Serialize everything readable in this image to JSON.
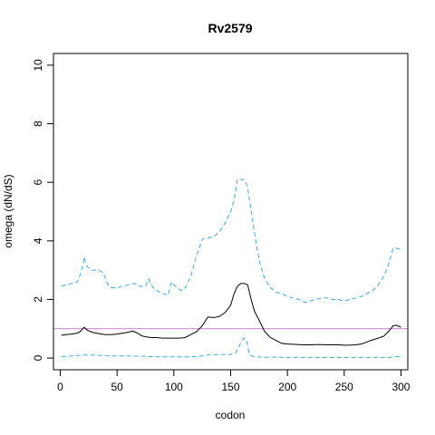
{
  "chart_data": {
    "type": "line",
    "title": "Rv2579",
    "xlabel": "codon",
    "ylabel": "omega (dN/dS)",
    "xlim": [
      -6,
      306
    ],
    "ylim": [
      -0.4,
      10.4
    ],
    "xticks": [
      0,
      50,
      100,
      150,
      200,
      250,
      300
    ],
    "yticks": [
      0,
      2,
      4,
      6,
      8,
      10
    ],
    "reference_line": {
      "y": 1,
      "color": "#c27fc8"
    },
    "series": [
      {
        "style": "solid",
        "color": "#000000",
        "x": [
          1,
          5,
          10,
          15,
          18,
          21,
          24,
          28,
          32,
          36,
          40,
          45,
          50,
          55,
          60,
          64,
          68,
          72,
          76,
          80,
          85,
          90,
          95,
          100,
          105,
          110,
          115,
          120,
          125,
          130,
          135,
          140,
          145,
          150,
          153,
          156,
          159,
          162,
          165,
          168,
          171,
          175,
          180,
          185,
          190,
          195,
          200,
          205,
          210,
          215,
          220,
          225,
          230,
          235,
          240,
          245,
          250,
          255,
          260,
          265,
          270,
          275,
          280,
          285,
          290,
          293,
          296,
          300
        ],
        "values": [
          0.78,
          0.8,
          0.82,
          0.85,
          0.92,
          1.05,
          0.95,
          0.88,
          0.85,
          0.82,
          0.8,
          0.8,
          0.82,
          0.85,
          0.88,
          0.92,
          0.85,
          0.75,
          0.72,
          0.7,
          0.7,
          0.68,
          0.68,
          0.68,
          0.68,
          0.7,
          0.8,
          0.9,
          1.1,
          1.4,
          1.38,
          1.42,
          1.55,
          1.8,
          2.2,
          2.45,
          2.55,
          2.55,
          2.5,
          2.0,
          1.6,
          1.3,
          0.9,
          0.7,
          0.6,
          0.5,
          0.48,
          0.47,
          0.46,
          0.45,
          0.45,
          0.46,
          0.46,
          0.45,
          0.45,
          0.45,
          0.44,
          0.44,
          0.45,
          0.48,
          0.55,
          0.62,
          0.68,
          0.75,
          0.95,
          1.1,
          1.12,
          1.05
        ]
      },
      {
        "style": "dashed",
        "color": "#3eaadf",
        "x": [
          1,
          5,
          10,
          15,
          18,
          20,
          21,
          22,
          24,
          26,
          28,
          30,
          34,
          38,
          40,
          42,
          45,
          50,
          55,
          60,
          65,
          70,
          75,
          78,
          80,
          82,
          85,
          90,
          95,
          98,
          100,
          103,
          106,
          110,
          115,
          120,
          125,
          128,
          130,
          135,
          140,
          145,
          150,
          153,
          156,
          159,
          161,
          163,
          165,
          167,
          170,
          173,
          176,
          180,
          185,
          190,
          195,
          200,
          205,
          210,
          215,
          220,
          225,
          230,
          235,
          240,
          245,
          250,
          255,
          260,
          265,
          270,
          275,
          280,
          285,
          290,
          293,
          296,
          300
        ],
        "values": [
          2.45,
          2.5,
          2.55,
          2.6,
          2.9,
          3.2,
          3.45,
          3.3,
          3.1,
          3.05,
          3.0,
          3.0,
          3.0,
          2.9,
          2.7,
          2.5,
          2.4,
          2.4,
          2.45,
          2.5,
          2.55,
          2.45,
          2.45,
          2.7,
          2.5,
          2.4,
          2.3,
          2.2,
          2.15,
          2.6,
          2.5,
          2.4,
          2.3,
          2.4,
          2.8,
          3.5,
          4.05,
          4.1,
          4.1,
          4.15,
          4.3,
          4.6,
          5.0,
          5.4,
          6.1,
          6.1,
          6.1,
          6.05,
          5.8,
          5.3,
          4.5,
          3.8,
          3.2,
          2.7,
          2.4,
          2.25,
          2.2,
          2.1,
          2.05,
          2.0,
          1.9,
          1.95,
          2.0,
          2.05,
          2.05,
          2.0,
          2.0,
          1.95,
          2.0,
          2.05,
          2.1,
          2.2,
          2.3,
          2.5,
          2.8,
          3.3,
          3.75,
          3.75,
          3.7
        ]
      },
      {
        "style": "dashed",
        "color": "#3eaadf",
        "x": [
          1,
          10,
          20,
          30,
          40,
          50,
          60,
          70,
          80,
          90,
          100,
          110,
          120,
          130,
          140,
          150,
          155,
          158,
          160,
          162,
          164,
          166,
          168,
          172,
          180,
          190,
          200,
          210,
          220,
          230,
          240,
          250,
          260,
          270,
          280,
          290,
          295,
          300
        ],
        "values": [
          0.05,
          0.07,
          0.1,
          0.1,
          0.08,
          0.07,
          0.07,
          0.06,
          0.05,
          0.04,
          0.04,
          0.04,
          0.05,
          0.1,
          0.12,
          0.12,
          0.2,
          0.45,
          0.6,
          0.68,
          0.6,
          0.2,
          0.08,
          0.04,
          0.03,
          0.03,
          0.02,
          0.02,
          0.02,
          0.02,
          0.02,
          0.02,
          0.02,
          0.02,
          0.02,
          0.02,
          0.05,
          0.05
        ]
      }
    ]
  }
}
